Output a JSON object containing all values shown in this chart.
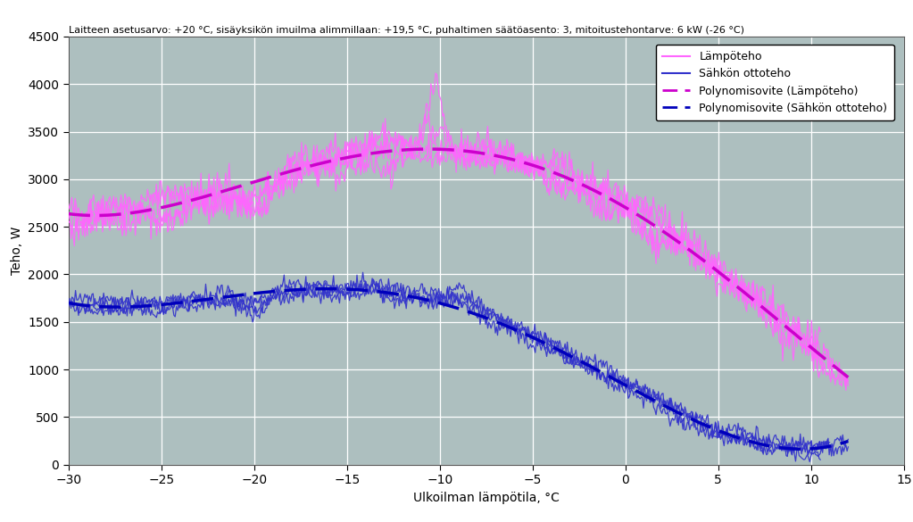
{
  "title": "Laitteen asetusarvo: +20 °C, sisäyksikön imuilma alimmillaan: +19,5 °C, puhaltimen säätöasento: 3, mitoitustehontarve: 6 kW (-26 °C)",
  "xlabel": "Ulkoilman lämpötila, °C",
  "ylabel": "Teho, W",
  "xlim": [
    -30,
    15
  ],
  "ylim": [
    0,
    4500
  ],
  "xticks": [
    -30,
    -25,
    -20,
    -15,
    -10,
    -5,
    0,
    5,
    10,
    15
  ],
  "yticks": [
    0,
    500,
    1000,
    1500,
    2000,
    2500,
    3000,
    3500,
    4000,
    4500
  ],
  "background_color": "#adbfbf",
  "grid_color": "#ffffff",
  "legend_labels": [
    "Lämpöteho",
    "Sähkön ottoteho",
    "Polynomisovite (Lämpöteho)",
    "Polynomisovite (Sähkön ottoteho)"
  ],
  "lamp_line_color": "#ff66ff",
  "sahko_line_color": "#3333cc",
  "lamp_poly_color": "#cc00cc",
  "sahko_poly_color": "#0000bb",
  "title_fontsize": 8.0,
  "axis_label_fontsize": 10,
  "tick_fontsize": 10,
  "legend_fontsize": 9
}
